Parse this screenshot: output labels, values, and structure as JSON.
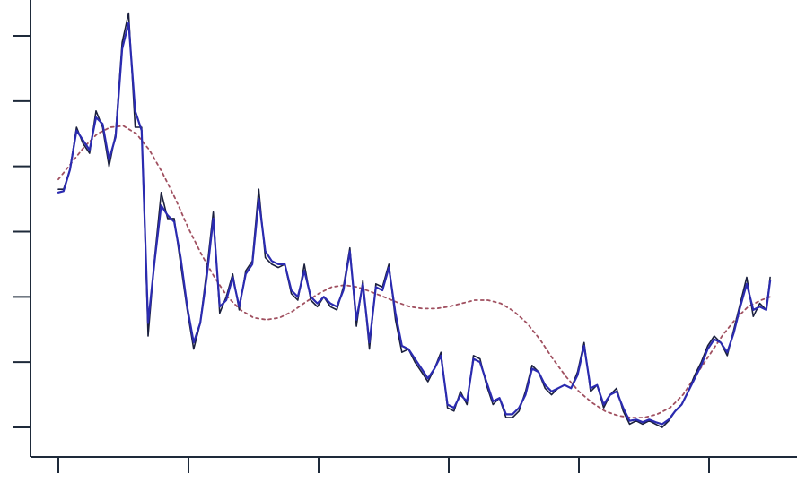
{
  "chart_data": {
    "type": "line",
    "title": "",
    "xlabel": "",
    "ylabel": "",
    "xlim": [
      -0.05,
      5.5
    ],
    "ylim": [
      -0.5,
      6.8
    ],
    "x_ticks": [
      0,
      1,
      2,
      3,
      4,
      5
    ],
    "y_ticks": [
      0,
      1,
      2,
      3,
      4,
      5,
      6
    ],
    "tick_labels_visible": false,
    "grid": false,
    "legend": "none",
    "colors": {
      "axis": "#1e2a3a",
      "raw": "#1a1f3d",
      "smoothed": "#2b2bb0",
      "trend": "#a05060"
    },
    "series": [
      {
        "key": "raw",
        "style": "solid-thin",
        "x": [
          0.0,
          0.04,
          0.09,
          0.14,
          0.19,
          0.24,
          0.29,
          0.34,
          0.39,
          0.44,
          0.49,
          0.54,
          0.59,
          0.64,
          0.69,
          0.74,
          0.79,
          0.84,
          0.89,
          0.94,
          0.99,
          1.04,
          1.09,
          1.14,
          1.19,
          1.24,
          1.29,
          1.34,
          1.39,
          1.44,
          1.49,
          1.54,
          1.59,
          1.64,
          1.69,
          1.74,
          1.79,
          1.84,
          1.89,
          1.94,
          1.99,
          2.04,
          2.09,
          2.14,
          2.19,
          2.24,
          2.29,
          2.34,
          2.39,
          2.44,
          2.49,
          2.54,
          2.59,
          2.64,
          2.69,
          2.74,
          2.79,
          2.84,
          2.89,
          2.94,
          2.99,
          3.04,
          3.09,
          3.14,
          3.19,
          3.24,
          3.29,
          3.34,
          3.39,
          3.44,
          3.49,
          3.54,
          3.59,
          3.64,
          3.69,
          3.74,
          3.79,
          3.84,
          3.89,
          3.94,
          3.99,
          4.04,
          4.09,
          4.14,
          4.19,
          4.24,
          4.29,
          4.34,
          4.39,
          4.44,
          4.49,
          4.54,
          4.59,
          4.64,
          4.69,
          4.74,
          4.79,
          4.84,
          4.89,
          4.94,
          4.99,
          5.04,
          5.09,
          5.14,
          5.19,
          5.24,
          5.29,
          5.34,
          5.39,
          5.44,
          5.47
        ],
        "y": [
          3.65,
          3.65,
          3.95,
          4.6,
          4.35,
          4.2,
          4.85,
          4.6,
          4.0,
          4.5,
          5.9,
          6.35,
          4.6,
          4.6,
          1.4,
          2.6,
          3.6,
          3.2,
          3.2,
          2.5,
          1.8,
          1.2,
          1.6,
          2.4,
          3.3,
          1.75,
          2.0,
          2.35,
          1.8,
          2.4,
          2.55,
          3.65,
          2.6,
          2.5,
          2.45,
          2.5,
          2.05,
          1.95,
          2.5,
          1.95,
          1.85,
          2.0,
          1.85,
          1.8,
          2.15,
          2.75,
          1.55,
          2.25,
          1.2,
          2.2,
          2.15,
          2.5,
          1.65,
          1.15,
          1.2,
          1.0,
          0.85,
          0.7,
          0.9,
          1.15,
          0.3,
          0.25,
          0.55,
          0.35,
          1.1,
          1.05,
          0.65,
          0.35,
          0.45,
          0.15,
          0.15,
          0.25,
          0.55,
          0.95,
          0.85,
          0.6,
          0.5,
          0.6,
          0.65,
          0.6,
          0.85,
          1.3,
          0.55,
          0.65,
          0.3,
          0.5,
          0.6,
          0.25,
          0.05,
          0.1,
          0.05,
          0.1,
          0.05,
          0.0,
          0.1,
          0.25,
          0.35,
          0.55,
          0.8,
          1.0,
          1.25,
          1.4,
          1.3,
          1.1,
          1.5,
          1.9,
          2.3,
          1.7,
          1.9,
          1.8,
          2.3
        ]
      },
      {
        "key": "smoothed",
        "style": "solid-thick",
        "x": [
          0.0,
          0.04,
          0.09,
          0.14,
          0.19,
          0.24,
          0.29,
          0.34,
          0.39,
          0.44,
          0.49,
          0.54,
          0.59,
          0.64,
          0.69,
          0.74,
          0.79,
          0.84,
          0.89,
          0.94,
          0.99,
          1.04,
          1.09,
          1.14,
          1.19,
          1.24,
          1.29,
          1.34,
          1.39,
          1.44,
          1.49,
          1.54,
          1.59,
          1.64,
          1.69,
          1.74,
          1.79,
          1.84,
          1.89,
          1.94,
          1.99,
          2.04,
          2.09,
          2.14,
          2.19,
          2.24,
          2.29,
          2.34,
          2.39,
          2.44,
          2.49,
          2.54,
          2.59,
          2.64,
          2.69,
          2.74,
          2.79,
          2.84,
          2.89,
          2.94,
          2.99,
          3.04,
          3.09,
          3.14,
          3.19,
          3.24,
          3.29,
          3.34,
          3.39,
          3.44,
          3.49,
          3.54,
          3.59,
          3.64,
          3.69,
          3.74,
          3.79,
          3.84,
          3.89,
          3.94,
          3.99,
          4.04,
          4.09,
          4.14,
          4.19,
          4.24,
          4.29,
          4.34,
          4.39,
          4.44,
          4.49,
          4.54,
          4.59,
          4.64,
          4.69,
          4.74,
          4.79,
          4.84,
          4.89,
          4.94,
          4.99,
          5.04,
          5.09,
          5.14,
          5.19,
          5.24,
          5.29,
          5.34,
          5.39,
          5.44,
          5.47
        ],
        "y": [
          3.6,
          3.62,
          3.95,
          4.55,
          4.4,
          4.25,
          4.75,
          4.65,
          4.1,
          4.45,
          5.8,
          6.2,
          4.85,
          4.55,
          1.6,
          2.55,
          3.4,
          3.25,
          3.15,
          2.6,
          1.85,
          1.3,
          1.6,
          2.3,
          3.2,
          1.85,
          1.95,
          2.3,
          1.85,
          2.35,
          2.5,
          3.5,
          2.7,
          2.55,
          2.5,
          2.5,
          2.1,
          2.0,
          2.4,
          2.0,
          1.9,
          2.0,
          1.9,
          1.85,
          2.1,
          2.7,
          1.65,
          2.2,
          1.3,
          2.15,
          2.1,
          2.45,
          1.75,
          1.25,
          1.2,
          1.05,
          0.9,
          0.75,
          0.9,
          1.1,
          0.35,
          0.3,
          0.5,
          0.4,
          1.05,
          1.0,
          0.7,
          0.4,
          0.45,
          0.2,
          0.2,
          0.3,
          0.5,
          0.9,
          0.85,
          0.65,
          0.55,
          0.6,
          0.65,
          0.6,
          0.8,
          1.25,
          0.6,
          0.65,
          0.35,
          0.5,
          0.55,
          0.3,
          0.1,
          0.12,
          0.08,
          0.12,
          0.08,
          0.05,
          0.12,
          0.25,
          0.35,
          0.55,
          0.75,
          0.95,
          1.2,
          1.35,
          1.3,
          1.15,
          1.45,
          1.85,
          2.2,
          1.8,
          1.85,
          1.8,
          2.25
        ]
      },
      {
        "key": "trend",
        "style": "dotted",
        "x": [
          0.0,
          0.1,
          0.2,
          0.3,
          0.4,
          0.5,
          0.6,
          0.7,
          0.8,
          0.9,
          1.0,
          1.1,
          1.2,
          1.3,
          1.4,
          1.5,
          1.6,
          1.7,
          1.8,
          1.9,
          2.0,
          2.1,
          2.2,
          2.3,
          2.4,
          2.5,
          2.6,
          2.7,
          2.8,
          2.9,
          3.0,
          3.1,
          3.2,
          3.3,
          3.4,
          3.5,
          3.6,
          3.7,
          3.8,
          3.9,
          4.0,
          4.1,
          4.2,
          4.3,
          4.4,
          4.5,
          4.6,
          4.7,
          4.8,
          4.9,
          5.0,
          5.1,
          5.2,
          5.3,
          5.4,
          5.47
        ],
        "y": [
          3.8,
          4.05,
          4.3,
          4.5,
          4.6,
          4.62,
          4.5,
          4.25,
          3.9,
          3.5,
          3.05,
          2.65,
          2.3,
          2.0,
          1.8,
          1.68,
          1.65,
          1.68,
          1.78,
          1.92,
          2.05,
          2.15,
          2.18,
          2.15,
          2.08,
          2.0,
          1.92,
          1.85,
          1.82,
          1.82,
          1.85,
          1.9,
          1.95,
          1.95,
          1.9,
          1.78,
          1.6,
          1.35,
          1.05,
          0.78,
          0.55,
          0.38,
          0.25,
          0.18,
          0.15,
          0.15,
          0.2,
          0.3,
          0.5,
          0.8,
          1.1,
          1.4,
          1.65,
          1.85,
          1.95,
          2.0
        ]
      }
    ]
  }
}
